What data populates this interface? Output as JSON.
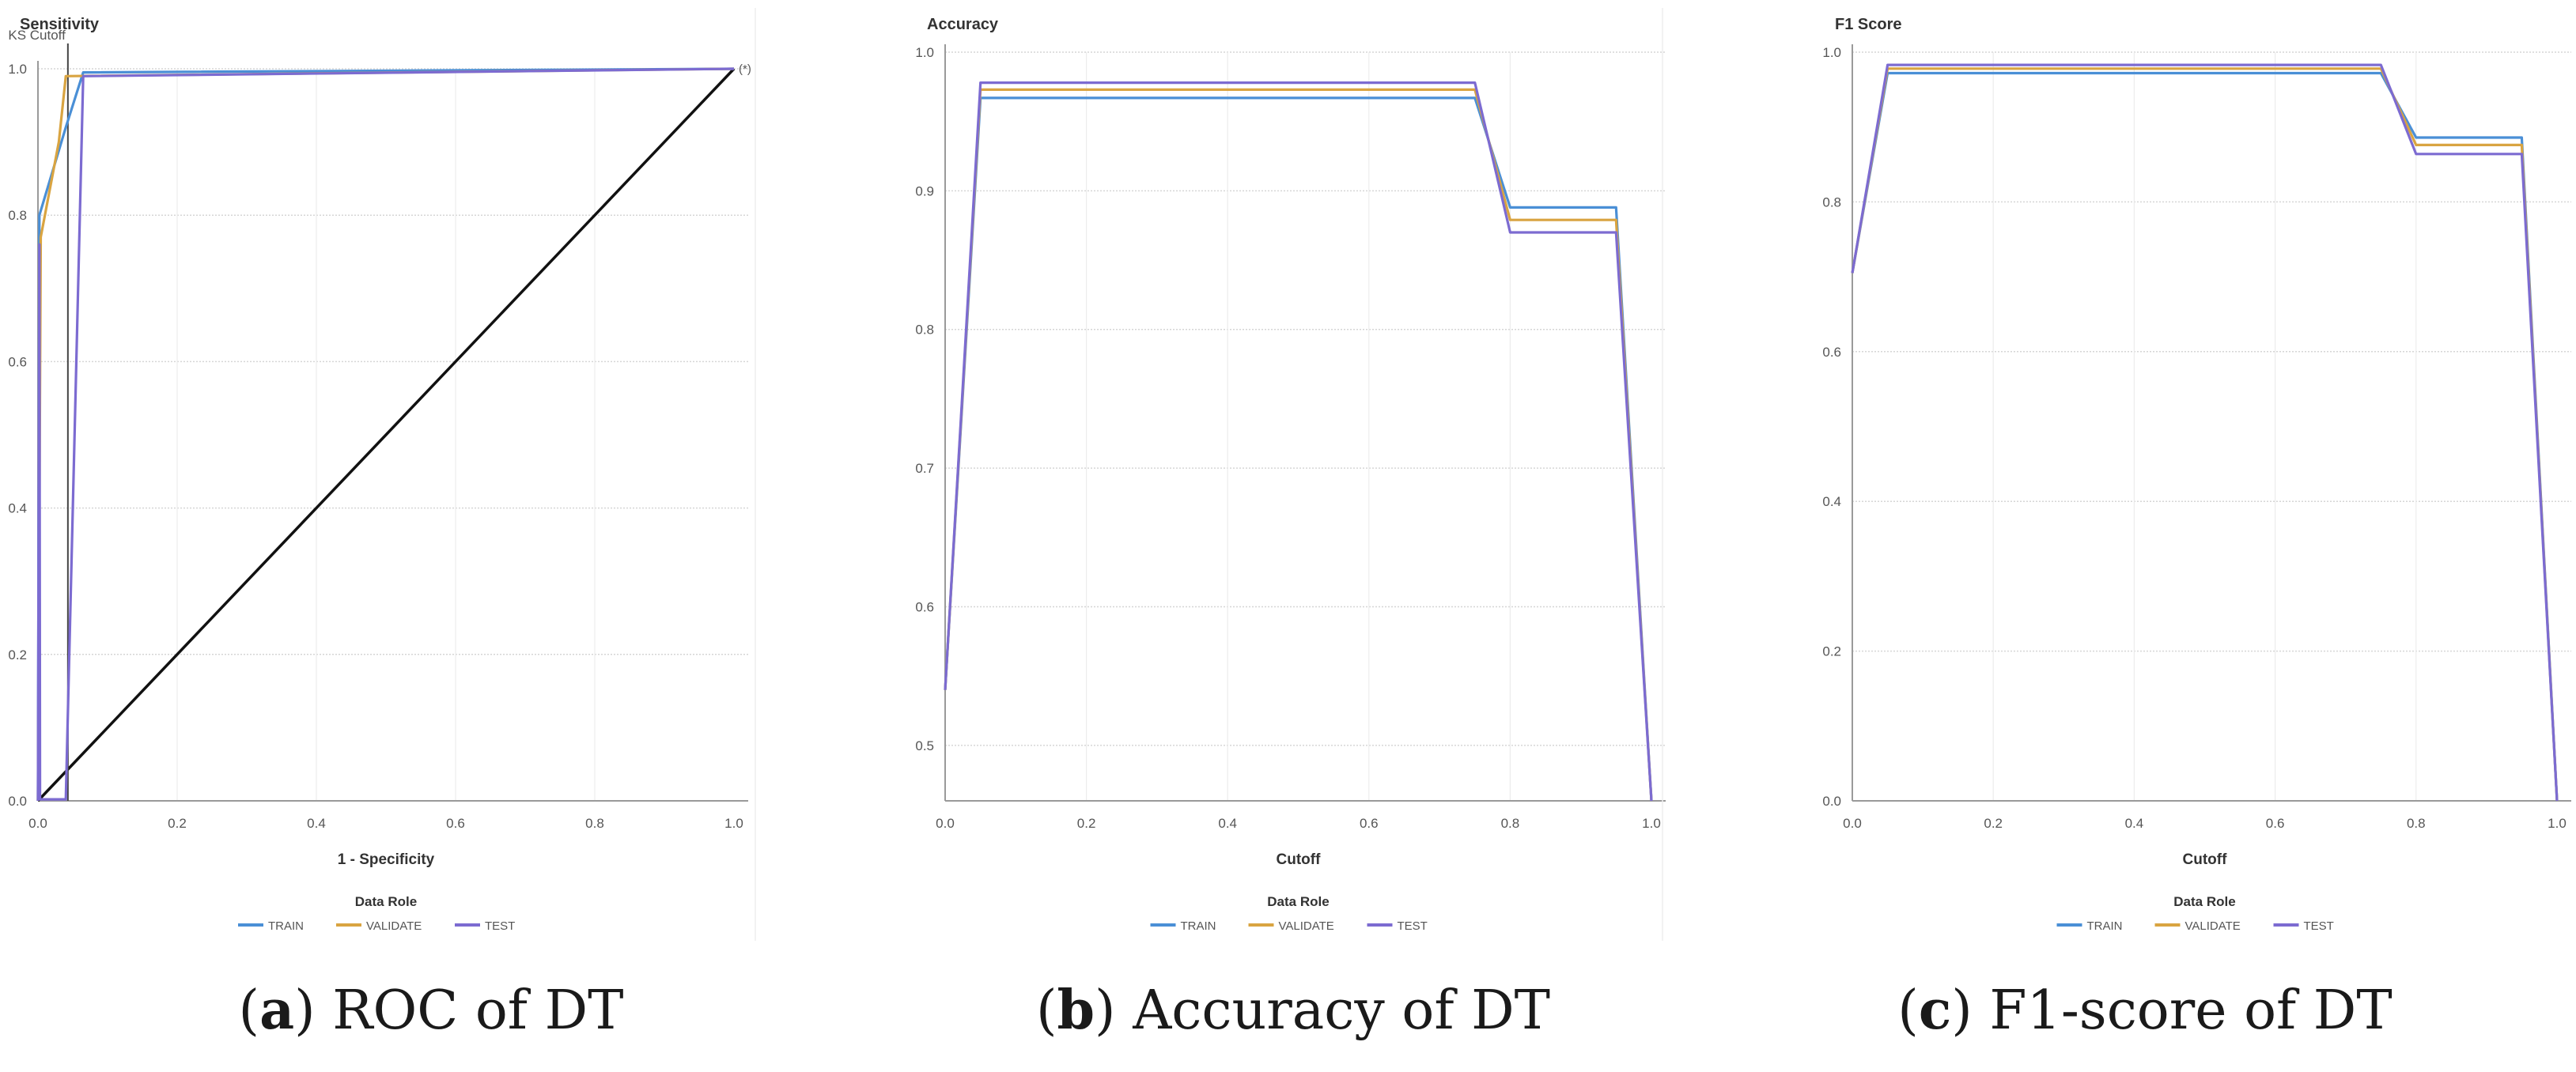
{
  "colors": {
    "train": "#4a8fd6",
    "validate": "#d9a441",
    "test": "#7c6bd1",
    "diagonal": "#111111",
    "grid": "#d6d6d6",
    "axis": "#9a9a9a",
    "text": "#555555"
  },
  "chart_data": [
    {
      "type": "line",
      "title": "Sensitivity",
      "xlabel": "1 - Specificity",
      "ylabel": "Sensitivity",
      "xlim": [
        0,
        1
      ],
      "ylim": [
        0,
        1
      ],
      "xticks": [
        "0.0",
        "0.2",
        "0.4",
        "0.6",
        "0.8",
        "1.0"
      ],
      "yticks": [
        "0.0",
        "0.2",
        "0.4",
        "0.6",
        "0.8",
        "1.0"
      ],
      "legend_title": "Data Role",
      "legend": [
        "TRAIN",
        "VALIDATE",
        "TEST"
      ],
      "ks_cutoff_label": "KS Cutoff",
      "ks_cutoff_x": 0.043,
      "corner_label": "(*)",
      "diagonal": [
        [
          0,
          0
        ],
        [
          1,
          1
        ]
      ],
      "series": [
        {
          "name": "TRAIN",
          "points": [
            [
              0,
              0
            ],
            [
              0.002,
              0.8
            ],
            [
              0.04,
              0.92
            ],
            [
              0.065,
              0.995
            ],
            [
              1,
              1
            ]
          ]
        },
        {
          "name": "VALIDATE",
          "points": [
            [
              0,
              0
            ],
            [
              0.004,
              0.77
            ],
            [
              0.03,
              0.9
            ],
            [
              0.04,
              0.99
            ],
            [
              1,
              1
            ]
          ]
        },
        {
          "name": "TEST",
          "points": [
            [
              0,
              0
            ],
            [
              0.002,
              0.76
            ],
            [
              0.003,
              0.002
            ],
            [
              0.04,
              0.002
            ],
            [
              0.065,
              0.99
            ],
            [
              1,
              1
            ]
          ]
        }
      ],
      "caption_letter": "a",
      "caption_text": " ROC of DT"
    },
    {
      "type": "line",
      "title": "Accuracy",
      "xlabel": "Cutoff",
      "ylabel": "Accuracy",
      "xlim": [
        0,
        1
      ],
      "ylim": [
        0.46,
        1.0
      ],
      "xticks": [
        "0.0",
        "0.2",
        "0.4",
        "0.6",
        "0.8",
        "1.0"
      ],
      "yticks": [
        "0.5",
        "0.6",
        "0.7",
        "0.8",
        "0.9",
        "1.0"
      ],
      "legend_title": "Data Role",
      "legend": [
        "TRAIN",
        "VALIDATE",
        "TEST"
      ],
      "series": [
        {
          "name": "TRAIN",
          "points": [
            [
              0,
              0.54
            ],
            [
              0.05,
              0.967
            ],
            [
              0.75,
              0.967
            ],
            [
              0.8,
              0.888
            ],
            [
              0.95,
              0.888
            ],
            [
              1,
              0.46
            ]
          ]
        },
        {
          "name": "VALIDATE",
          "points": [
            [
              0,
              0.54
            ],
            [
              0.05,
              0.973
            ],
            [
              0.75,
              0.973
            ],
            [
              0.8,
              0.879
            ],
            [
              0.95,
              0.879
            ],
            [
              1,
              0.46
            ]
          ]
        },
        {
          "name": "TEST",
          "points": [
            [
              0,
              0.54
            ],
            [
              0.05,
              0.978
            ],
            [
              0.75,
              0.978
            ],
            [
              0.8,
              0.87
            ],
            [
              0.95,
              0.87
            ],
            [
              1,
              0.46
            ]
          ]
        }
      ],
      "caption_letter": "b",
      "caption_text": " Accuracy of DT"
    },
    {
      "type": "line",
      "title": "F1 Score",
      "xlabel": "Cutoff",
      "ylabel": "F1 Score",
      "xlim": [
        0,
        1
      ],
      "ylim": [
        0,
        1
      ],
      "xticks": [
        "0.0",
        "0.2",
        "0.4",
        "0.6",
        "0.8",
        "1.0"
      ],
      "yticks": [
        "0.0",
        "0.2",
        "0.4",
        "0.6",
        "0.8",
        "1.0"
      ],
      "legend_title": "Data Role",
      "legend": [
        "TRAIN",
        "VALIDATE",
        "TEST"
      ],
      "series": [
        {
          "name": "TRAIN",
          "points": [
            [
              0,
              0.705
            ],
            [
              0.05,
              0.972
            ],
            [
              0.75,
              0.972
            ],
            [
              0.8,
              0.886
            ],
            [
              0.95,
              0.886
            ],
            [
              1,
              0
            ]
          ]
        },
        {
          "name": "VALIDATE",
          "points": [
            [
              0,
              0.705
            ],
            [
              0.05,
              0.978
            ],
            [
              0.75,
              0.978
            ],
            [
              0.8,
              0.876
            ],
            [
              0.95,
              0.876
            ],
            [
              1,
              0
            ]
          ]
        },
        {
          "name": "TEST",
          "points": [
            [
              0,
              0.705
            ],
            [
              0.05,
              0.983
            ],
            [
              0.75,
              0.983
            ],
            [
              0.8,
              0.864
            ],
            [
              0.95,
              0.864
            ],
            [
              1,
              0
            ]
          ]
        }
      ],
      "caption_letter": "c",
      "caption_text": " F1-score of DT"
    }
  ]
}
